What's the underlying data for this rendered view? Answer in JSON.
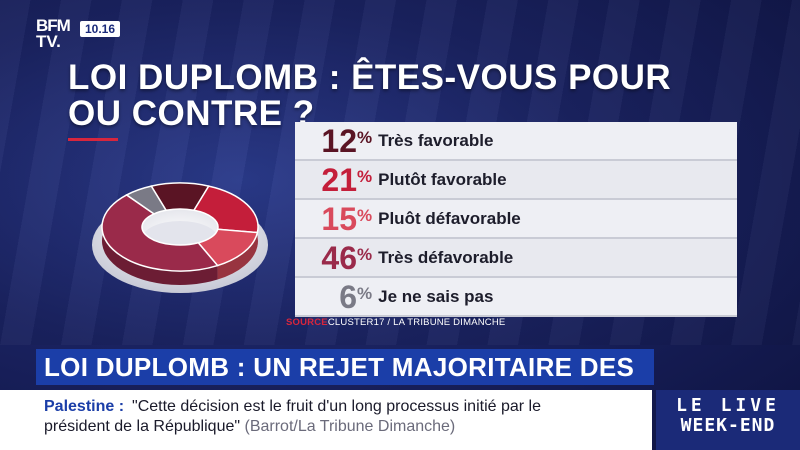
{
  "channel": {
    "logo_line1": "BFM",
    "logo_line2": "TV.",
    "time": "10.16"
  },
  "headline": "LOI DUPLOMB : ÊTES-VOUS POUR OU CONTRE ?",
  "colors": {
    "tres_favorable": "#5a1424",
    "plutot_favorable": "#c41e3a",
    "pluot_defavorable": "#d94a5c",
    "tres_defavorable": "#9a2a4a",
    "ne_sais_pas": "#7a7a86",
    "accent": "#d7263d",
    "banner": "#1b3ea8"
  },
  "chart_data": {
    "type": "pie",
    "title": "LOI DUPLOMB : ÊTES-VOUS POUR OU CONTRE ?",
    "unit": "%",
    "slices": [
      {
        "label": "Très favorable",
        "value": 12,
        "color": "#5a1424"
      },
      {
        "label": "Plutôt favorable",
        "value": 21,
        "color": "#c41e3a"
      },
      {
        "label": "Pluôt défavorable",
        "value": 15,
        "color": "#d94a5c"
      },
      {
        "label": "Très défavorable",
        "value": 46,
        "color": "#9a2a4a"
      },
      {
        "label": "Je ne sais pas",
        "value": 6,
        "color": "#7a7a86"
      }
    ]
  },
  "source": {
    "key": "SOURCE",
    "text": "CLUSTER17 / LA TRIBUNE DIMANCHE"
  },
  "banner": "LOI DUPLOMB : UN REJET MAJORITAIRE DES FRANÇAIS",
  "ticker": {
    "key": "Palestine :",
    "line1": "\"Cette décision est le fruit d'un long processus initié par le",
    "line2_quote": "président de la République\"",
    "line2_attr": "(Barrot/La Tribune Dimanche)"
  },
  "live": {
    "line1": "LE LIVE",
    "line2": "WEEK-END"
  }
}
